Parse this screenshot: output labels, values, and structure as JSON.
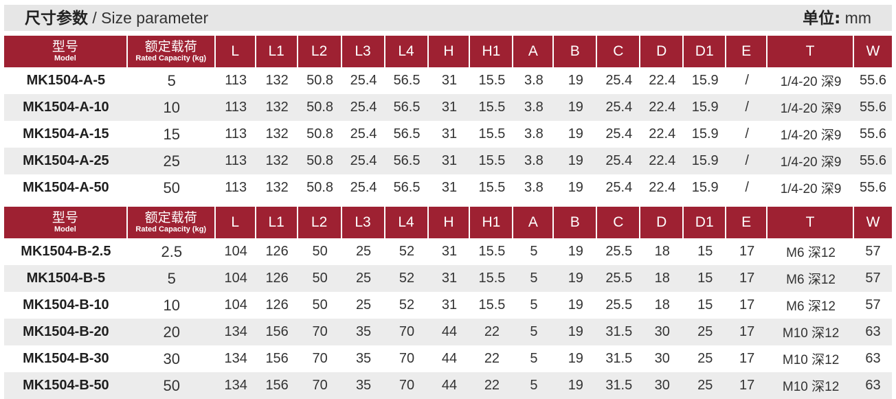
{
  "title": {
    "cn": "尺寸参数",
    "sep": " / ",
    "en": "Size parameter",
    "unit_cn": "单位:",
    "unit": " mm"
  },
  "colors": {
    "header_bg": "#9e2132",
    "title_bg": "#e6e6e6",
    "row_alt_bg": "#ececec"
  },
  "header": {
    "model_cn": "型号",
    "model_en": "Model",
    "capacity_cn": "额定载荷",
    "capacity_en": "Rated Capacity (kg)",
    "cols": [
      "L",
      "L1",
      "L2",
      "L3",
      "L4",
      "H",
      "H1",
      "A",
      "B",
      "C",
      "D",
      "D1",
      "E",
      "T",
      "W"
    ]
  },
  "table_a": {
    "rows": [
      [
        "MK1504-A-5",
        "5",
        "113",
        "132",
        "50.8",
        "25.4",
        "56.5",
        "31",
        "15.5",
        "3.8",
        "19",
        "25.4",
        "22.4",
        "15.9",
        "/",
        "1/4-20 深9",
        "55.6"
      ],
      [
        "MK1504-A-10",
        "10",
        "113",
        "132",
        "50.8",
        "25.4",
        "56.5",
        "31",
        "15.5",
        "3.8",
        "19",
        "25.4",
        "22.4",
        "15.9",
        "/",
        "1/4-20 深9",
        "55.6"
      ],
      [
        "MK1504-A-15",
        "15",
        "113",
        "132",
        "50.8",
        "25.4",
        "56.5",
        "31",
        "15.5",
        "3.8",
        "19",
        "25.4",
        "22.4",
        "15.9",
        "/",
        "1/4-20 深9",
        "55.6"
      ],
      [
        "MK1504-A-25",
        "25",
        "113",
        "132",
        "50.8",
        "25.4",
        "56.5",
        "31",
        "15.5",
        "3.8",
        "19",
        "25.4",
        "22.4",
        "15.9",
        "/",
        "1/4-20 深9",
        "55.6"
      ],
      [
        "MK1504-A-50",
        "50",
        "113",
        "132",
        "50.8",
        "25.4",
        "56.5",
        "31",
        "15.5",
        "3.8",
        "19",
        "25.4",
        "22.4",
        "15.9",
        "/",
        "1/4-20 深9",
        "55.6"
      ]
    ]
  },
  "table_b": {
    "rows": [
      [
        "MK1504-B-2.5",
        "2.5",
        "104",
        "126",
        "50",
        "25",
        "52",
        "31",
        "15.5",
        "5",
        "19",
        "25.5",
        "18",
        "15",
        "17",
        "M6 深12",
        "57"
      ],
      [
        "MK1504-B-5",
        "5",
        "104",
        "126",
        "50",
        "25",
        "52",
        "31",
        "15.5",
        "5",
        "19",
        "25.5",
        "18",
        "15",
        "17",
        "M6 深12",
        "57"
      ],
      [
        "MK1504-B-10",
        "10",
        "104",
        "126",
        "50",
        "25",
        "52",
        "31",
        "15.5",
        "5",
        "19",
        "25.5",
        "18",
        "15",
        "17",
        "M6 深12",
        "57"
      ],
      [
        "MK1504-B-20",
        "20",
        "134",
        "156",
        "70",
        "35",
        "70",
        "44",
        "22",
        "5",
        "19",
        "31.5",
        "30",
        "25",
        "17",
        "M10 深12",
        "63"
      ],
      [
        "MK1504-B-30",
        "30",
        "134",
        "156",
        "70",
        "35",
        "70",
        "44",
        "22",
        "5",
        "19",
        "31.5",
        "30",
        "25",
        "17",
        "M10 深12",
        "63"
      ],
      [
        "MK1504-B-50",
        "50",
        "134",
        "156",
        "70",
        "35",
        "70",
        "44",
        "22",
        "5",
        "19",
        "31.5",
        "30",
        "25",
        "17",
        "M10 深12",
        "63"
      ]
    ]
  }
}
